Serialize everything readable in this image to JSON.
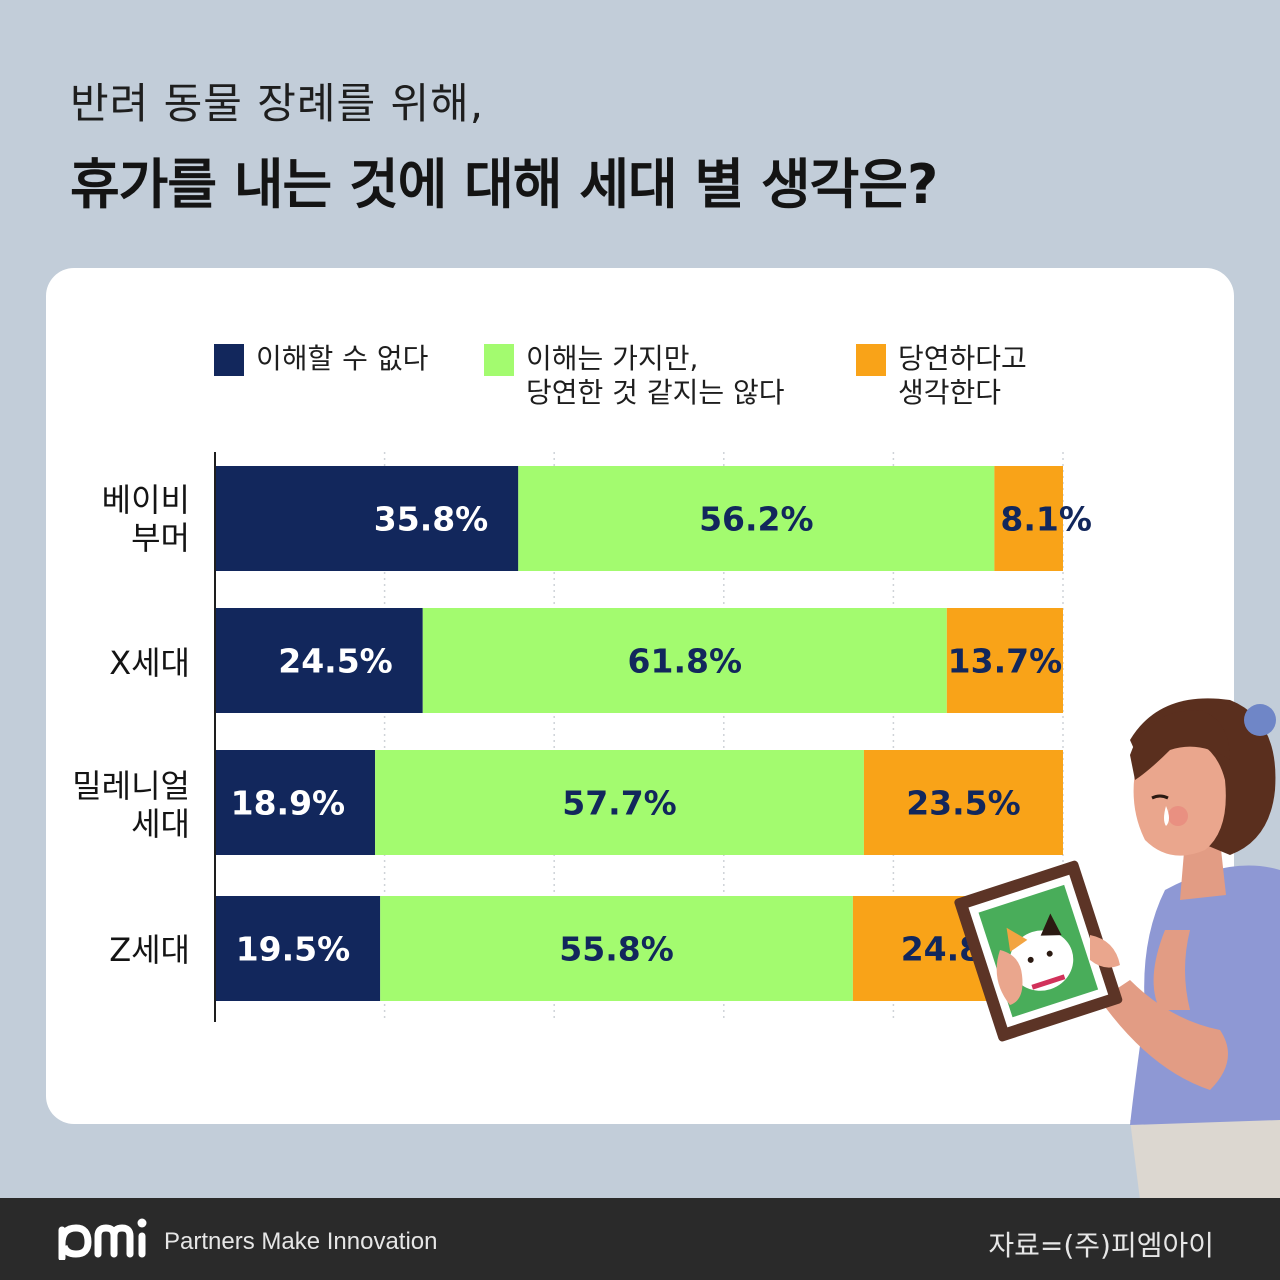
{
  "title_line1": "반려 동물 장례를 위해,",
  "title_line2": "휴가를 내는 것에 대해 세대 별 생각은?",
  "legend": [
    {
      "label": "이해할 수 없다",
      "color": "#12275c"
    },
    {
      "label": "이해는 가지만,\n당연한 것 같지는 않다",
      "color": "#a3fb6f"
    },
    {
      "label": "당연하다고\n생각한다",
      "color": "#f9a318"
    }
  ],
  "chart_data": {
    "type": "bar",
    "orientation": "horizontal",
    "stacked": true,
    "categories": [
      "베이비\n부머",
      "X세대",
      "밀레니얼\n세대",
      "Z세대"
    ],
    "series": [
      {
        "name": "이해할 수 없다",
        "values": [
          35.8,
          24.5,
          18.9,
          19.5
        ],
        "color": "#12275c",
        "label_color": "#ffffff"
      },
      {
        "name": "이해는 가지만, 당연한 것 같지는 않다",
        "values": [
          56.2,
          61.8,
          57.7,
          55.8
        ],
        "color": "#a3fb6f",
        "label_color": "#12275c"
      },
      {
        "name": "당연하다고 생각한다",
        "values": [
          8.1,
          13.7,
          23.5,
          24.8
        ],
        "color": "#f9a318",
        "label_color": "#12275c"
      }
    ],
    "value_suffix": "%",
    "grid": true,
    "legend_position": "top"
  },
  "footer": {
    "logo": "pmi",
    "tagline": "Partners Make Innovation",
    "source": "자료=(주)피엠아이"
  }
}
